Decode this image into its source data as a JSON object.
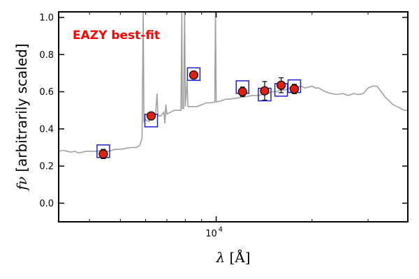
{
  "chart_data": {
    "type": "scatter",
    "xscale": "log",
    "xlim": [
      3200,
      40000
    ],
    "ylim": [
      -0.1,
      1.03
    ],
    "xlabel": "λ [Å]",
    "ylabel": "f_ν [arbitrarily scaled]",
    "ylabel_math": "fν",
    "ylabel_text": " [arbitrarily scaled]",
    "xlabel_math": "λ",
    "xlabel_text": " [Å]",
    "xticks": [
      {
        "value": 10000,
        "base": "10",
        "exp": "4"
      }
    ],
    "yticks": [
      {
        "value": 0.0,
        "label": "0.0"
      },
      {
        "value": 0.2,
        "label": "0.2"
      },
      {
        "value": 0.4,
        "label": "0.4"
      },
      {
        "value": 0.6,
        "label": "0.6"
      },
      {
        "value": 0.8,
        "label": "0.8"
      },
      {
        "value": 1.0,
        "label": "1.0"
      }
    ],
    "annotation": "EAZY best-fit",
    "colors": {
      "annotation": "#ff0000",
      "template": "#a0a0a0",
      "model_box": "#1f1fd6",
      "observed_fill": "#e02010",
      "observed_edge": "#000000",
      "axes": "#000000"
    },
    "template_sed": [
      [
        3200,
        0.28
      ],
      [
        3300,
        0.285
      ],
      [
        3400,
        0.28
      ],
      [
        3500,
        0.275
      ],
      [
        3600,
        0.28
      ],
      [
        3700,
        0.27
      ],
      [
        3800,
        0.275
      ],
      [
        3900,
        0.28
      ],
      [
        4000,
        0.28
      ],
      [
        4200,
        0.28
      ],
      [
        4400,
        0.285
      ],
      [
        4600,
        0.28
      ],
      [
        4800,
        0.29
      ],
      [
        5000,
        0.29
      ],
      [
        5200,
        0.295
      ],
      [
        5400,
        0.3
      ],
      [
        5600,
        0.3
      ],
      [
        5750,
        0.31
      ],
      [
        5850,
        0.35
      ],
      [
        5900,
        1.03
      ],
      [
        5930,
        0.44
      ],
      [
        6000,
        0.45
      ],
      [
        6150,
        0.44
      ],
      [
        6300,
        0.47
      ],
      [
        6450,
        0.48
      ],
      [
        6520,
        0.59
      ],
      [
        6560,
        0.47
      ],
      [
        6700,
        0.47
      ],
      [
        6850,
        0.49
      ],
      [
        6900,
        0.43
      ],
      [
        6950,
        0.53
      ],
      [
        7000,
        0.48
      ],
      [
        7200,
        0.49
      ],
      [
        7400,
        0.5
      ],
      [
        7600,
        0.5
      ],
      [
        7750,
        0.5
      ],
      [
        7800,
        1.03
      ],
      [
        7830,
        0.51
      ],
      [
        7900,
        0.51
      ],
      [
        7960,
        1.03
      ],
      [
        8000,
        0.52
      ],
      [
        8100,
        0.66
      ],
      [
        8150,
        0.52
      ],
      [
        8400,
        0.52
      ],
      [
        8700,
        0.52
      ],
      [
        9000,
        0.53
      ],
      [
        9300,
        0.54
      ],
      [
        9600,
        0.54
      ],
      [
        9900,
        0.545
      ],
      [
        9950,
        1.03
      ],
      [
        10000,
        0.545
      ],
      [
        10300,
        0.55
      ],
      [
        10700,
        0.56
      ],
      [
        11000,
        0.56
      ],
      [
        11500,
        0.565
      ],
      [
        12000,
        0.57
      ],
      [
        12500,
        0.575
      ],
      [
        13000,
        0.58
      ],
      [
        13500,
        0.58
      ],
      [
        14000,
        0.585
      ],
      [
        14500,
        0.59
      ],
      [
        15000,
        0.6
      ],
      [
        15500,
        0.6
      ],
      [
        16000,
        0.61
      ],
      [
        16500,
        0.61
      ],
      [
        17000,
        0.62
      ],
      [
        17500,
        0.62
      ],
      [
        18000,
        0.625
      ],
      [
        18500,
        0.63
      ],
      [
        19000,
        0.62
      ],
      [
        19500,
        0.625
      ],
      [
        20000,
        0.63
      ],
      [
        20500,
        0.62
      ],
      [
        21000,
        0.62
      ],
      [
        22000,
        0.6
      ],
      [
        23000,
        0.59
      ],
      [
        24000,
        0.585
      ],
      [
        25000,
        0.59
      ],
      [
        26000,
        0.58
      ],
      [
        27000,
        0.59
      ],
      [
        28000,
        0.585
      ],
      [
        29000,
        0.59
      ],
      [
        30000,
        0.62
      ],
      [
        31000,
        0.63
      ],
      [
        32000,
        0.63
      ],
      [
        33000,
        0.6
      ],
      [
        34000,
        0.57
      ],
      [
        35000,
        0.55
      ],
      [
        36000,
        0.53
      ],
      [
        37000,
        0.52
      ],
      [
        38000,
        0.51
      ],
      [
        39000,
        0.5
      ],
      [
        40000,
        0.5
      ]
    ],
    "model_fluxes": [
      {
        "x": 4420,
        "y": 0.28
      },
      {
        "x": 6250,
        "y": 0.445
      },
      {
        "x": 8500,
        "y": 0.695
      },
      {
        "x": 12100,
        "y": 0.625
      },
      {
        "x": 14200,
        "y": 0.585
      },
      {
        "x": 16000,
        "y": 0.61
      },
      {
        "x": 17600,
        "y": 0.63
      }
    ],
    "observed_fluxes": [
      {
        "x": 4420,
        "y": 0.265,
        "err": 0.025
      },
      {
        "x": 6250,
        "y": 0.47,
        "err": 0.015
      },
      {
        "x": 8500,
        "y": 0.69,
        "err": 0.02
      },
      {
        "x": 12100,
        "y": 0.6,
        "err": 0.025
      },
      {
        "x": 14200,
        "y": 0.605,
        "err": 0.05
      },
      {
        "x": 16000,
        "y": 0.635,
        "err": 0.04
      },
      {
        "x": 17600,
        "y": 0.615,
        "err": 0.025
      }
    ]
  }
}
